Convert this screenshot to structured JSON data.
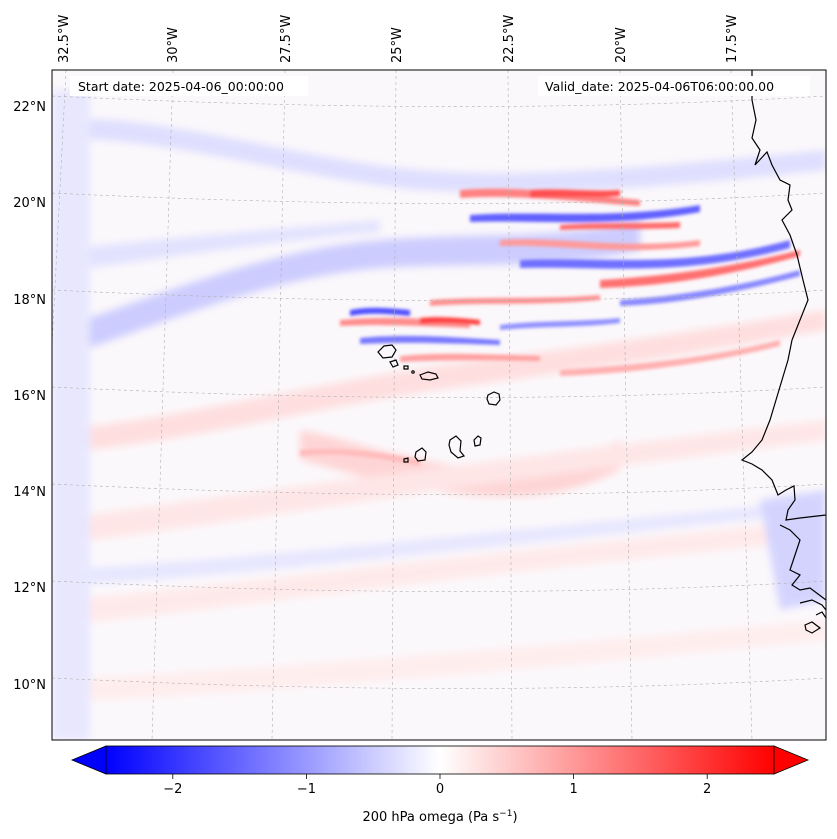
{
  "map": {
    "start_label": "Start date: 2025-04-06_00:00:00",
    "valid_label": "Valid_date: 2025-04-06T06:00:00.00",
    "lon_labels": [
      "32.5°W",
      "30°W",
      "27.5°W",
      "25°W",
      "22.5°W",
      "20°W",
      "17.5°W"
    ],
    "lat_labels": [
      "22°N",
      "20°N",
      "18°N",
      "16°N",
      "14°N",
      "12°N",
      "10°N"
    ],
    "colors": {
      "negative": "#0000ff",
      "neutral": "#ffffff",
      "positive": "#ff0000",
      "coast": "#000000",
      "grid": "#b0b0b0"
    }
  },
  "colorbar": {
    "tick_labels": [
      "−2",
      "−1",
      "0",
      "1",
      "2"
    ],
    "tick_values": [
      -2,
      -1,
      0,
      1,
      2
    ],
    "range": [
      -2.5,
      2.5
    ],
    "label_main": "200 hPa omega (Pa s",
    "label_exp": "−1",
    "label_close": ")"
  }
}
